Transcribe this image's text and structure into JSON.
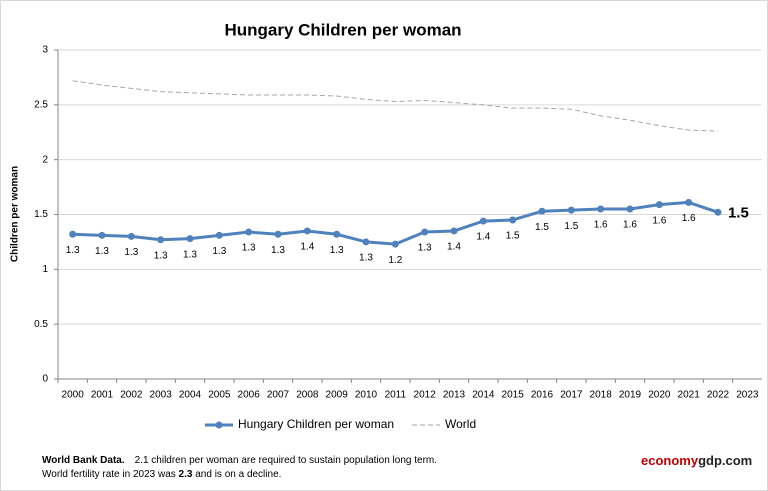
{
  "chart_data": {
    "type": "line",
    "title": "Hungary Children per woman",
    "y_label": "Children per woman",
    "categories": [
      "2000",
      "2001",
      "2002",
      "2003",
      "2004",
      "2005",
      "2006",
      "2007",
      "2008",
      "2009",
      "2010",
      "2011",
      "2012",
      "2013",
      "2014",
      "2015",
      "2016",
      "2017",
      "2018",
      "2019",
      "2020",
      "2021",
      "2022",
      "2023"
    ],
    "series": [
      {
        "name": "Hungary Children per woman",
        "color": "#4f81bd",
        "style": "solid-marker",
        "values": [
          1.32,
          1.31,
          1.3,
          1.27,
          1.28,
          1.31,
          1.34,
          1.32,
          1.35,
          1.32,
          1.25,
          1.23,
          1.34,
          1.35,
          1.44,
          1.45,
          1.53,
          1.54,
          1.55,
          1.55,
          1.59,
          1.61,
          1.52,
          null
        ],
        "value_labels": [
          "1.3",
          "1.3",
          "1.3",
          "1.3",
          "1.3",
          "1.3",
          "1.3",
          "1.3",
          "1.4",
          "1.3",
          "1.3",
          "1.2",
          "1.3",
          "1.4",
          "1.4",
          "1.5",
          "1.5",
          "1.5",
          "1.6",
          "1.6",
          "1.6",
          "1.6",
          "1.5",
          null
        ]
      },
      {
        "name": "World",
        "color": "#a6a6a6",
        "style": "dashed",
        "values": [
          2.72,
          2.68,
          2.65,
          2.62,
          2.61,
          2.6,
          2.59,
          2.59,
          2.59,
          2.58,
          2.55,
          2.53,
          2.54,
          2.52,
          2.5,
          2.47,
          2.47,
          2.46,
          2.4,
          2.36,
          2.31,
          2.27,
          2.26,
          null
        ]
      }
    ],
    "ylim": [
      0,
      3
    ],
    "yticks": [
      0,
      0.5,
      1,
      1.5,
      2,
      2.5,
      3
    ],
    "grid": true,
    "legend": "bottom"
  },
  "footer": {
    "source": "World Bank Data.",
    "note": "2.1 children per woman are required to sustain population long term.",
    "line2_before": "World fertility rate in 2023 was",
    "line2_value": "2.3",
    "line2_after": "and is on a decline.",
    "brand_red": "economy",
    "brand_dark": "gdp.com"
  }
}
